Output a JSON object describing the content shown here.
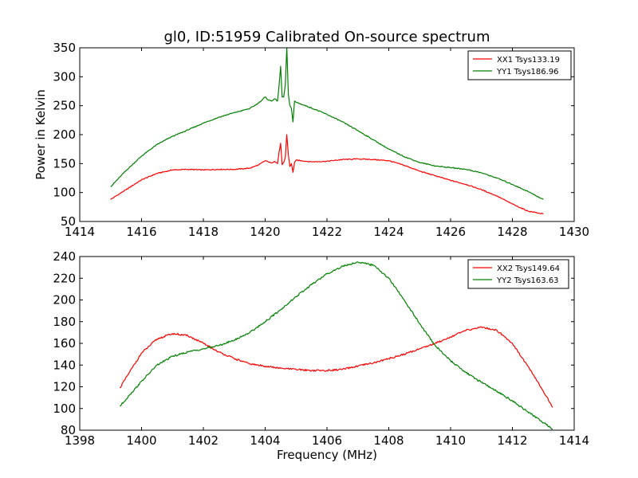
{
  "page": {
    "title": "gl0, ID:51959 Calibrated On-source spectrum",
    "ylabel": "Power in Kelvin",
    "xlabel": "Frequency (MHz)"
  },
  "chart_data": [
    {
      "type": "line",
      "title": "gl0, ID:51959 Calibrated On-source spectrum",
      "xlabel": "",
      "ylabel": "Power in Kelvin",
      "xlim": [
        1414,
        1430
      ],
      "ylim": [
        50,
        350
      ],
      "xticks": [
        1414,
        1416,
        1418,
        1420,
        1422,
        1424,
        1426,
        1428,
        1430
      ],
      "yticks": [
        50,
        100,
        150,
        200,
        250,
        300,
        350
      ],
      "legend_position": "top-right",
      "grid": false,
      "series": [
        {
          "name": "XX1 Tsys133.19",
          "color": "#ff0000",
          "x": [
            1415.0,
            1415.5,
            1416.0,
            1416.5,
            1417.0,
            1417.5,
            1418.0,
            1418.5,
            1419.0,
            1419.5,
            1419.8,
            1420.0,
            1420.1,
            1420.2,
            1420.3,
            1420.4,
            1420.45,
            1420.5,
            1420.55,
            1420.6,
            1420.65,
            1420.7,
            1420.75,
            1420.8,
            1420.85,
            1420.9,
            1420.95,
            1421.0,
            1421.5,
            1422.0,
            1422.5,
            1423.0,
            1423.5,
            1424.0,
            1424.5,
            1425.0,
            1425.5,
            1426.0,
            1426.5,
            1427.0,
            1427.5,
            1428.0,
            1428.5,
            1429.0
          ],
          "y": [
            88,
            105,
            122,
            133,
            139,
            140,
            139,
            140,
            140,
            142,
            148,
            155,
            153,
            151,
            154,
            150,
            170,
            185,
            148,
            152,
            160,
            200,
            165,
            145,
            150,
            135,
            152,
            156,
            153,
            154,
            157,
            158,
            157,
            155,
            147,
            137,
            129,
            121,
            114,
            105,
            94,
            80,
            68,
            63
          ]
        },
        {
          "name": "YY1 Tsys186.96",
          "color": "#008000",
          "x": [
            1415.0,
            1415.5,
            1416.0,
            1416.5,
            1417.0,
            1417.5,
            1418.0,
            1418.5,
            1419.0,
            1419.5,
            1419.8,
            1420.0,
            1420.1,
            1420.2,
            1420.3,
            1420.4,
            1420.45,
            1420.5,
            1420.55,
            1420.6,
            1420.65,
            1420.7,
            1420.75,
            1420.8,
            1420.85,
            1420.9,
            1420.95,
            1421.0,
            1421.5,
            1422.0,
            1422.5,
            1423.0,
            1423.5,
            1424.0,
            1424.5,
            1425.0,
            1425.5,
            1426.0,
            1426.5,
            1427.0,
            1427.5,
            1428.0,
            1428.5,
            1429.0
          ],
          "y": [
            110,
            138,
            163,
            183,
            197,
            208,
            220,
            230,
            238,
            245,
            255,
            265,
            260,
            258,
            262,
            258,
            285,
            318,
            265,
            265,
            285,
            350,
            270,
            250,
            245,
            222,
            258,
            256,
            246,
            235,
            222,
            207,
            191,
            175,
            162,
            152,
            146,
            143,
            140,
            134,
            125,
            114,
            102,
            88
          ]
        }
      ]
    },
    {
      "type": "line",
      "title": "",
      "xlabel": "Frequency (MHz)",
      "ylabel": "",
      "xlim": [
        1398,
        1414
      ],
      "ylim": [
        80,
        240
      ],
      "xticks": [
        1398,
        1400,
        1402,
        1404,
        1406,
        1408,
        1410,
        1412,
        1414
      ],
      "yticks": [
        80,
        100,
        120,
        140,
        160,
        180,
        200,
        220,
        240
      ],
      "legend_position": "top-right",
      "grid": false,
      "series": [
        {
          "name": "XX2 Tsys149.64",
          "color": "#ff0000",
          "x": [
            1399.3,
            1399.6,
            1400.0,
            1400.5,
            1401.0,
            1401.5,
            1402.0,
            1402.5,
            1403.0,
            1403.5,
            1404.0,
            1404.5,
            1405.0,
            1405.5,
            1406.0,
            1406.5,
            1407.0,
            1407.5,
            1408.0,
            1408.5,
            1409.0,
            1409.5,
            1410.0,
            1410.5,
            1411.0,
            1411.5,
            1412.0,
            1412.5,
            1413.0,
            1413.3
          ],
          "y": [
            119,
            133,
            151,
            164,
            169,
            167,
            160,
            152,
            146,
            141,
            139,
            137,
            136,
            135,
            135,
            136,
            139,
            142,
            146,
            150,
            155,
            160,
            166,
            172,
            175,
            172,
            160,
            139,
            116,
            101
          ]
        },
        {
          "name": "YY2 Tsys163.63",
          "color": "#008000",
          "x": [
            1399.3,
            1399.6,
            1400.0,
            1400.5,
            1401.0,
            1401.5,
            1402.0,
            1402.5,
            1403.0,
            1403.5,
            1404.0,
            1404.5,
            1405.0,
            1405.5,
            1406.0,
            1406.5,
            1407.0,
            1407.5,
            1408.0,
            1408.5,
            1409.0,
            1409.5,
            1410.0,
            1410.5,
            1411.0,
            1411.5,
            1412.0,
            1412.5,
            1413.0,
            1413.3
          ],
          "y": [
            102,
            112,
            125,
            140,
            148,
            152,
            155,
            158,
            163,
            170,
            180,
            191,
            203,
            214,
            224,
            231,
            235,
            232,
            220,
            200,
            178,
            158,
            144,
            133,
            124,
            116,
            107,
            97,
            87,
            81
          ]
        }
      ]
    }
  ]
}
